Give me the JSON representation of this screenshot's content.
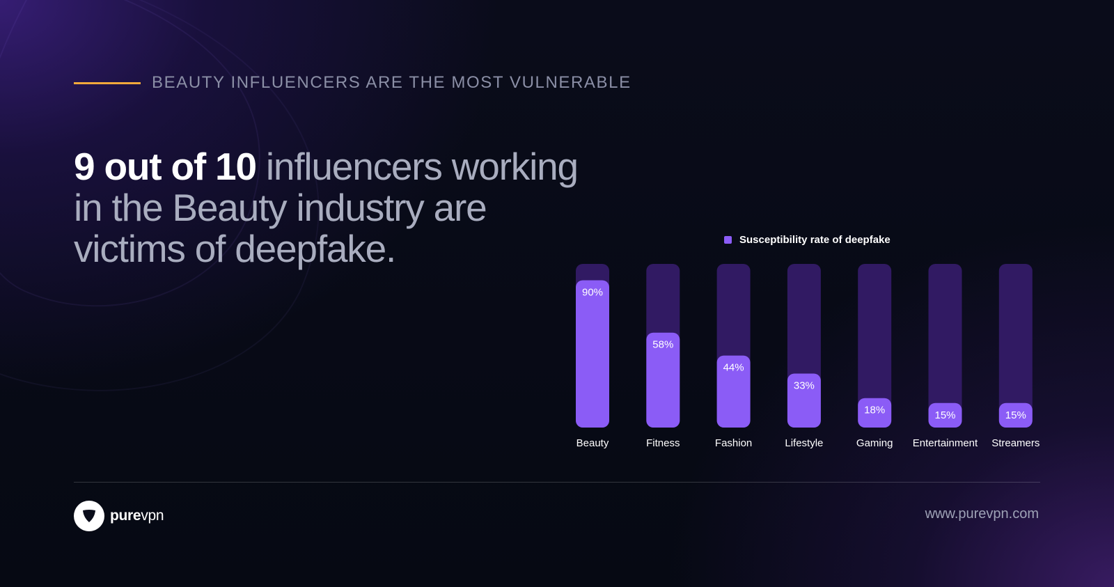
{
  "eyebrow": {
    "text": "BEAUTY INFLUENCERS ARE THE MOST VULNERABLE"
  },
  "headline": {
    "strong": "9 out of 10",
    "rest": " influencers working in the Beauty industry are victims of deepfake."
  },
  "colors": {
    "accent_line": "#f2a93b",
    "bar_fill": "#8b5cf6",
    "bar_track": "#311a63",
    "background": "#070a14"
  },
  "chart_data": {
    "type": "bar",
    "categories": [
      "Beauty",
      "Fitness",
      "Fashion",
      "Lifestyle",
      "Gaming",
      "Entertainment",
      "Streamers"
    ],
    "series": [
      {
        "name": "Susceptibility rate of deepfake",
        "values": [
          90,
          58,
          44,
          33,
          18,
          15,
          15
        ]
      }
    ],
    "data_labels": [
      "90%",
      "58%",
      "44%",
      "33%",
      "18%",
      "15%",
      "15%"
    ],
    "ylim": [
      0,
      100
    ],
    "grid": false,
    "legend_position": "top"
  },
  "footer": {
    "brand_strong": "pure",
    "brand_light": "vpn",
    "url": "www.purevpn.com",
    "logo_icon": "shield-icon"
  }
}
